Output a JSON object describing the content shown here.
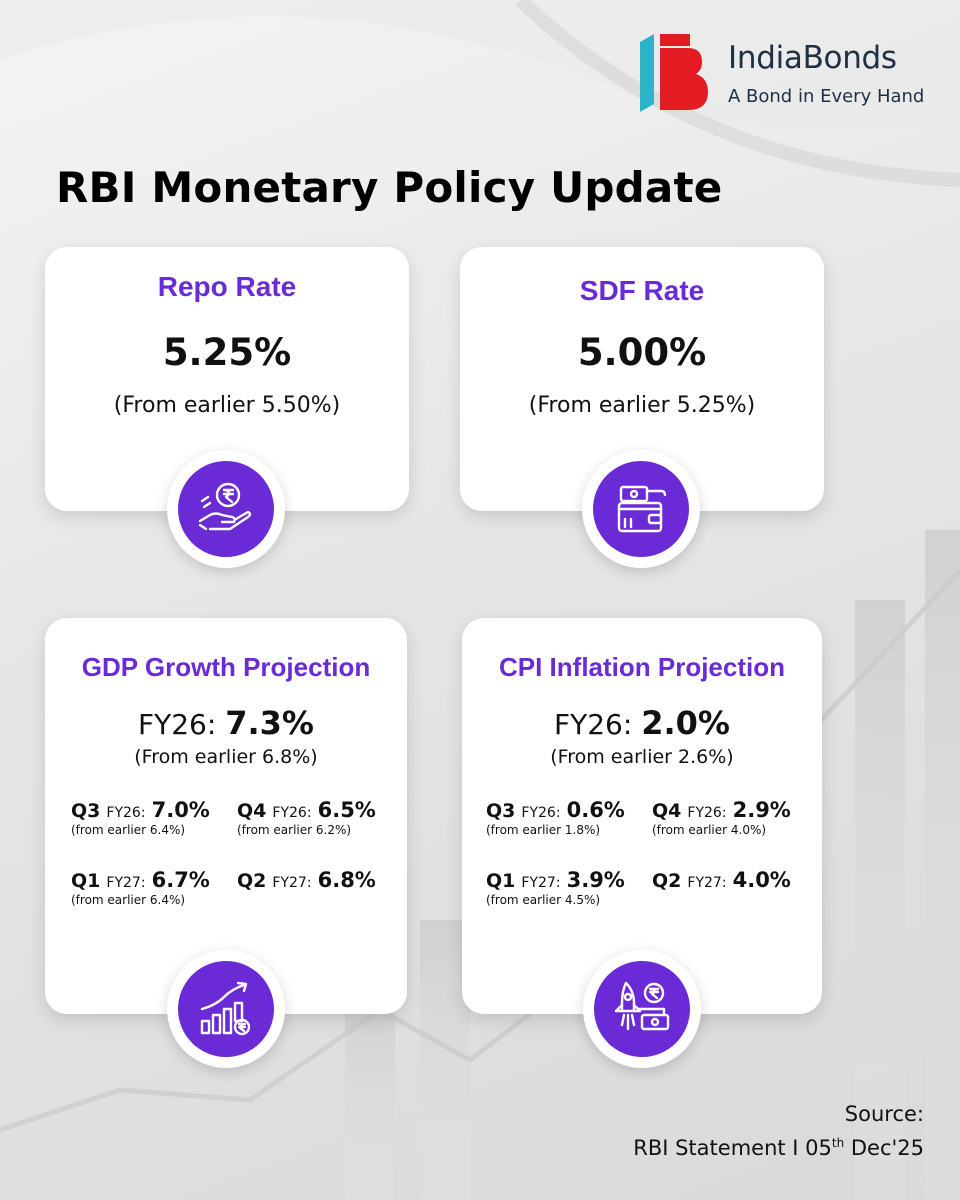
{
  "brand": {
    "name": "IndiaBonds",
    "tagline": "A Bond in Every Hand",
    "colors": {
      "accent_red": "#e31b23",
      "accent_teal": "#2bb5c8",
      "navy": "#1f2f44",
      "purple": "#6a2ad6"
    }
  },
  "title": "RBI Monetary Policy Update",
  "repo": {
    "title": "Repo Rate",
    "value": "5.25%",
    "note": "(From earlier 5.50%)",
    "icon": "hand-rupee-coin-icon"
  },
  "sdf": {
    "title": "SDF Rate",
    "value": "5.00%",
    "note": "(From earlier 5.25%)",
    "icon": "wallet-deposit-icon"
  },
  "gdp": {
    "title": "GDP Growth Projection",
    "fy_label": "FY26:",
    "fy_value": "7.3%",
    "fy_note": "(From earlier 6.8%)",
    "icon": "growth-chart-icon",
    "quarters": [
      {
        "q": "Q3",
        "fy": "FY26:",
        "value": "7.0%",
        "note": "(from earlier 6.4%)"
      },
      {
        "q": "Q4",
        "fy": "FY26:",
        "value": "6.5%",
        "note": "(from earlier 6.2%)"
      },
      {
        "q": "Q1",
        "fy": "FY27:",
        "value": "6.7%",
        "note": "(from earlier 6.4%)"
      },
      {
        "q": "Q2",
        "fy": "FY27:",
        "value": "6.8%",
        "note": ""
      }
    ]
  },
  "cpi": {
    "title": "CPI Inflation Projection",
    "fy_label": "FY26:",
    "fy_value": "2.0%",
    "fy_note": "(From earlier 2.6%)",
    "icon": "rocket-money-icon",
    "quarters": [
      {
        "q": "Q3",
        "fy": "FY26:",
        "value": "0.6%",
        "note": "(from earlier 1.8%)"
      },
      {
        "q": "Q4",
        "fy": "FY26:",
        "value": "2.9%",
        "note": "(from earlier 4.0%)"
      },
      {
        "q": "Q1",
        "fy": "FY27:",
        "value": "3.9%",
        "note": "(from earlier 4.5%)"
      },
      {
        "q": "Q2",
        "fy": "FY27:",
        "value": "4.0%",
        "note": ""
      }
    ]
  },
  "source": {
    "label": "Source:",
    "text_before": "RBI Statement I 05",
    "superscript": "th",
    "text_after": " Dec'25"
  }
}
